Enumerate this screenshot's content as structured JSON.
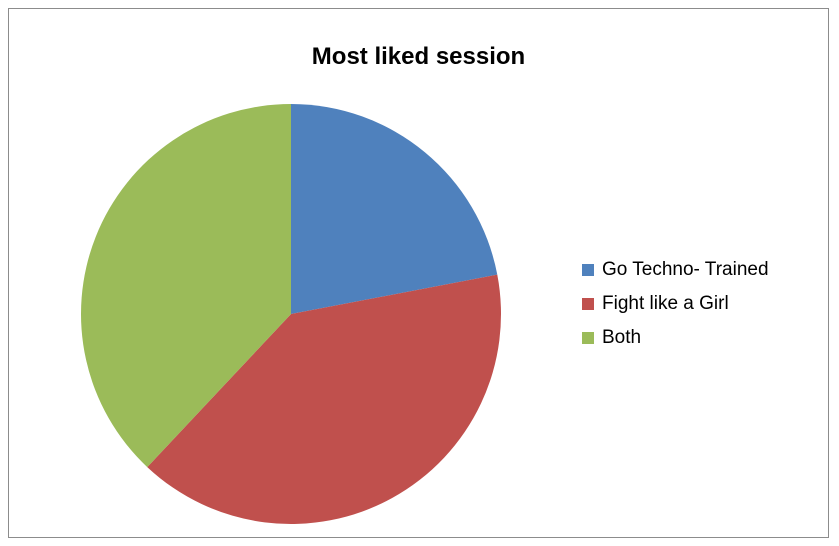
{
  "chart_data": {
    "type": "pie",
    "title": "Most liked session",
    "legend_position": "right",
    "slices": [
      {
        "label": "Go Techno- Trained",
        "value": 22,
        "color": "#4F81BD"
      },
      {
        "label": "Fight like a Girl",
        "value": 40,
        "color": "#C0504D"
      },
      {
        "label": "Both",
        "value": 38,
        "color": "#9BBB59"
      }
    ]
  }
}
